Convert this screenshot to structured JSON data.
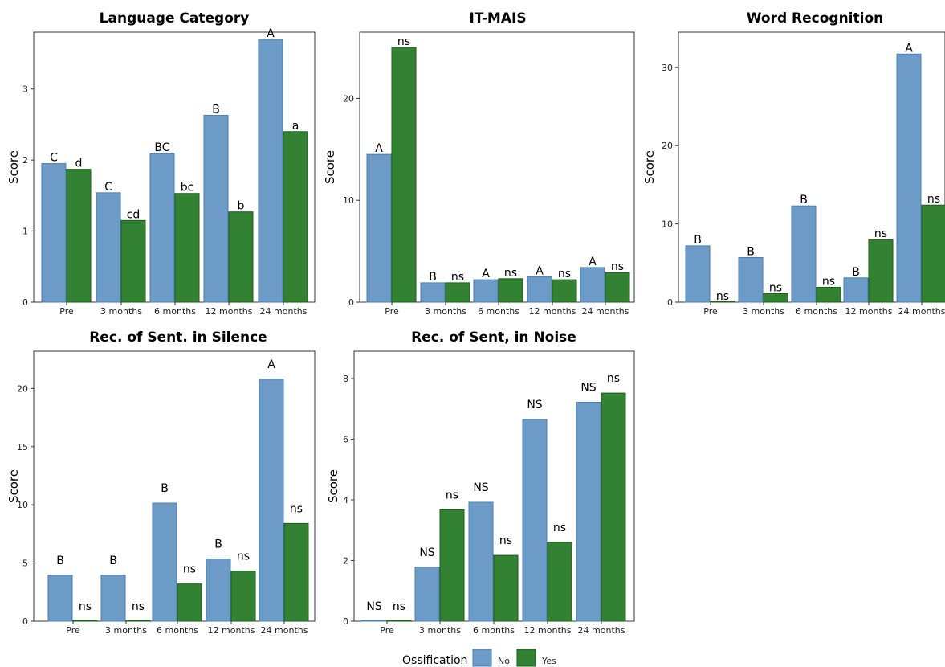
{
  "legend": {
    "title": "Ossification",
    "items": [
      {
        "name": "No",
        "color": "#6b9bc6"
      },
      {
        "name": "Yes",
        "color": "#338233"
      }
    ]
  },
  "chart_data": [
    {
      "type": "bar",
      "title": "Language Category",
      "ylabel": "Score",
      "ylim": [
        0,
        3.8
      ],
      "yticks": [
        0,
        1,
        2,
        3
      ],
      "categories": [
        "Pre",
        "3 months",
        "6 months",
        "12 months",
        "24 months"
      ],
      "series": [
        {
          "name": "No",
          "values": [
            1.95,
            1.54,
            2.09,
            2.63,
            3.7
          ],
          "labels": [
            "C",
            "C",
            "BC",
            "B",
            "A"
          ]
        },
        {
          "name": "Yes",
          "values": [
            1.87,
            1.15,
            1.53,
            1.27,
            2.4
          ],
          "labels": [
            "d",
            "cd",
            "bc",
            "b",
            "a"
          ]
        }
      ]
    },
    {
      "type": "bar",
      "title": "IT-MAIS",
      "ylabel": "Score",
      "ylim": [
        0,
        26.5
      ],
      "yticks": [
        0,
        10,
        20
      ],
      "categories": [
        "Pre",
        "3 months",
        "6 months",
        "12 months",
        "24 months"
      ],
      "series": [
        {
          "name": "No",
          "values": [
            14.5,
            1.9,
            2.2,
            2.5,
            3.4
          ],
          "labels": [
            "A",
            "B",
            "A",
            "A",
            "A"
          ]
        },
        {
          "name": "Yes",
          "values": [
            25.0,
            1.9,
            2.3,
            2.2,
            2.9
          ],
          "labels": [
            "ns",
            "ns",
            "ns",
            "ns",
            "ns"
          ]
        }
      ]
    },
    {
      "type": "bar",
      "title": "Word Recognition",
      "ylabel": "Score",
      "ylim": [
        0,
        34.5
      ],
      "yticks": [
        0,
        10,
        20,
        30
      ],
      "categories": [
        "Pre",
        "3 months",
        "6 months",
        "12 months",
        "24 months"
      ],
      "series": [
        {
          "name": "No",
          "values": [
            7.2,
            5.7,
            12.3,
            3.1,
            31.7
          ],
          "labels": [
            "B",
            "B",
            "B",
            "B",
            "A"
          ]
        },
        {
          "name": "Yes",
          "values": [
            0.0,
            1.1,
            1.9,
            8.0,
            12.4
          ],
          "labels": [
            "ns",
            "ns",
            "ns",
            "ns",
            "ns"
          ]
        }
      ]
    },
    {
      "type": "bar",
      "title": "Rec. of Sent. in Silence",
      "ylabel": "Score",
      "ylim": [
        0,
        23.2
      ],
      "yticks": [
        0,
        5,
        10,
        15,
        20
      ],
      "categories": [
        "Pre",
        "3 months",
        "6 months",
        "12 months",
        "24 months"
      ],
      "series": [
        {
          "name": "No",
          "values": [
            3.95,
            3.95,
            10.15,
            5.35,
            20.8
          ],
          "labels": [
            "B",
            "B",
            "B",
            "B",
            "A"
          ]
        },
        {
          "name": "Yes",
          "values": [
            0.0,
            0.0,
            3.2,
            4.3,
            8.4
          ],
          "labels": [
            "ns",
            "ns",
            "ns",
            "ns",
            "ns"
          ]
        }
      ]
    },
    {
      "type": "bar",
      "title": "Rec. of Sent, in Noise",
      "ylabel": "Score",
      "ylim": [
        0,
        8.9
      ],
      "yticks": [
        0,
        2,
        4,
        6,
        8
      ],
      "categories": [
        "Pre",
        "3 months",
        "6 months",
        "12 months",
        "24 months"
      ],
      "series": [
        {
          "name": "No",
          "values": [
            0.0,
            1.78,
            3.92,
            6.65,
            7.22
          ],
          "labels": [
            "NS",
            "NS",
            "NS",
            "NS",
            "NS"
          ]
        },
        {
          "name": "Yes",
          "values": [
            0.0,
            3.67,
            2.17,
            2.6,
            7.52
          ],
          "labels": [
            "ns",
            "ns",
            "ns",
            "ns",
            "ns"
          ]
        }
      ]
    }
  ]
}
